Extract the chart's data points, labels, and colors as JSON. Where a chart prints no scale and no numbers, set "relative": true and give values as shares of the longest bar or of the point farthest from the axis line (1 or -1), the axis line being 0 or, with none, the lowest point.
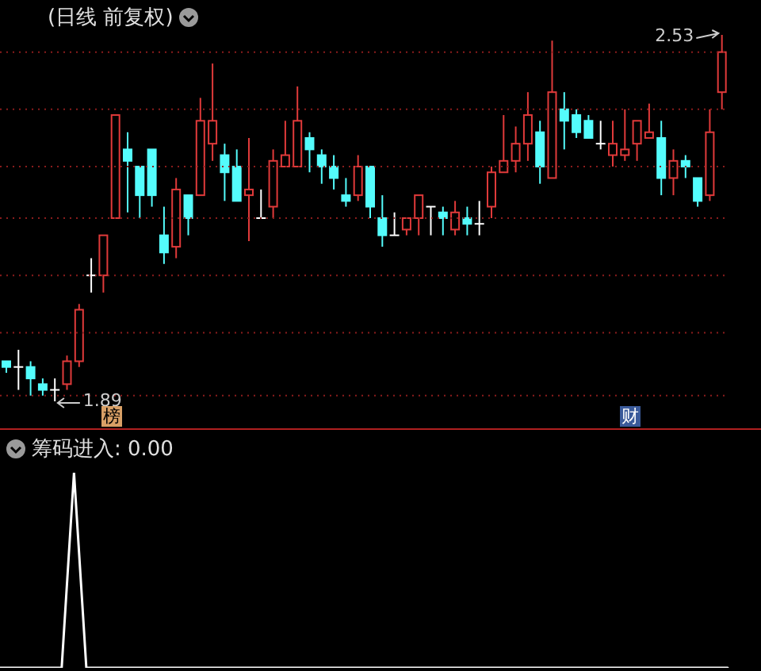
{
  "chart_data": [
    {
      "type": "candlestick",
      "title": "(日线 前复权)",
      "tick_labels": false,
      "grid": "y",
      "categories": [
        null,
        null,
        null,
        null,
        null,
        null,
        null,
        null,
        null,
        null,
        null,
        null,
        null,
        null,
        null,
        null,
        null,
        null,
        null,
        null,
        null,
        null,
        null,
        null,
        null,
        null,
        null,
        null,
        null,
        null,
        null,
        null,
        null,
        null,
        null,
        null,
        null,
        null,
        null,
        null,
        null,
        null,
        null,
        null,
        null,
        null,
        null,
        null,
        null,
        null,
        null,
        null,
        null,
        null,
        null,
        null,
        null,
        null,
        null,
        null
      ],
      "ohlc": [
        [
          1.96,
          1.96,
          1.94,
          1.95
        ],
        [
          1.95,
          1.98,
          1.91,
          1.95
        ],
        [
          1.95,
          1.96,
          1.9,
          1.93
        ],
        [
          1.92,
          1.93,
          1.9,
          1.91
        ],
        [
          1.91,
          1.93,
          1.89,
          1.91
        ],
        [
          1.92,
          1.97,
          1.91,
          1.96
        ],
        [
          1.96,
          2.06,
          1.95,
          2.05
        ],
        [
          2.11,
          2.14,
          2.08,
          2.11
        ],
        [
          2.11,
          2.18,
          2.08,
          2.18
        ],
        [
          2.21,
          2.39,
          2.21,
          2.39
        ],
        [
          2.33,
          2.36,
          2.22,
          2.31
        ],
        [
          2.3,
          2.3,
          2.21,
          2.25
        ],
        [
          2.33,
          2.33,
          2.23,
          2.25
        ],
        [
          2.18,
          2.23,
          2.13,
          2.15
        ],
        [
          2.16,
          2.28,
          2.14,
          2.26
        ],
        [
          2.25,
          2.25,
          2.18,
          2.21
        ],
        [
          2.25,
          2.42,
          2.25,
          2.38
        ],
        [
          2.34,
          2.48,
          2.31,
          2.38
        ],
        [
          2.32,
          2.34,
          2.24,
          2.29
        ],
        [
          2.3,
          2.33,
          2.24,
          2.24
        ],
        [
          2.25,
          2.35,
          2.17,
          2.26
        ],
        [
          2.21,
          2.26,
          2.21,
          2.21
        ],
        [
          2.23,
          2.33,
          2.21,
          2.31
        ],
        [
          2.3,
          2.38,
          2.3,
          2.32
        ],
        [
          2.3,
          2.44,
          2.3,
          2.38
        ],
        [
          2.35,
          2.36,
          2.29,
          2.33
        ],
        [
          2.32,
          2.33,
          2.27,
          2.3
        ],
        [
          2.3,
          2.32,
          2.26,
          2.28
        ],
        [
          2.25,
          2.28,
          2.23,
          2.24
        ],
        [
          2.25,
          2.32,
          2.24,
          2.3
        ],
        [
          2.3,
          2.3,
          2.21,
          2.23
        ],
        [
          2.21,
          2.25,
          2.16,
          2.18
        ],
        [
          2.18,
          2.22,
          2.18,
          2.18
        ],
        [
          2.19,
          2.21,
          2.18,
          2.21
        ],
        [
          2.21,
          2.25,
          2.18,
          2.25
        ],
        [
          2.23,
          2.23,
          2.18,
          2.23
        ],
        [
          2.22,
          2.23,
          2.18,
          2.21
        ],
        [
          2.19,
          2.24,
          2.18,
          2.22
        ],
        [
          2.21,
          2.23,
          2.18,
          2.2
        ],
        [
          2.2,
          2.24,
          2.18,
          2.2
        ],
        [
          2.23,
          2.3,
          2.21,
          2.29
        ],
        [
          2.29,
          2.39,
          2.29,
          2.31
        ],
        [
          2.31,
          2.37,
          2.29,
          2.34
        ],
        [
          2.34,
          2.43,
          2.31,
          2.39
        ],
        [
          2.36,
          2.38,
          2.27,
          2.3
        ],
        [
          2.28,
          2.52,
          2.28,
          2.43
        ],
        [
          2.4,
          2.43,
          2.33,
          2.38
        ],
        [
          2.39,
          2.4,
          2.35,
          2.36
        ],
        [
          2.38,
          2.39,
          2.35,
          2.35
        ],
        [
          2.34,
          2.38,
          2.33,
          2.34
        ],
        [
          2.32,
          2.38,
          2.3,
          2.34
        ],
        [
          2.32,
          2.4,
          2.31,
          2.33
        ],
        [
          2.34,
          2.38,
          2.31,
          2.38
        ],
        [
          2.35,
          2.41,
          2.35,
          2.36
        ],
        [
          2.35,
          2.38,
          2.25,
          2.28
        ],
        [
          2.28,
          2.33,
          2.25,
          2.31
        ],
        [
          2.31,
          2.32,
          2.28,
          2.3
        ],
        [
          2.28,
          2.28,
          2.23,
          2.24
        ],
        [
          2.25,
          2.4,
          2.24,
          2.36
        ],
        [
          2.43,
          2.53,
          2.4,
          2.5
        ]
      ],
      "colors": [
        "#54fcfc",
        "#ffffff",
        "#54fcfc",
        "#54fcfc",
        "#ffffff",
        "#e03a3a",
        "#e03a3a",
        "#ffffff",
        "#e03a3a",
        "#e03a3a",
        "#54fcfc",
        "#54fcfc",
        "#54fcfc",
        "#54fcfc",
        "#e03a3a",
        "#54fcfc",
        "#e03a3a",
        "#e03a3a",
        "#54fcfc",
        "#54fcfc",
        "#e03a3a",
        "#ffffff",
        "#e03a3a",
        "#e03a3a",
        "#e03a3a",
        "#54fcfc",
        "#54fcfc",
        "#54fcfc",
        "#54fcfc",
        "#e03a3a",
        "#54fcfc",
        "#54fcfc",
        "#ffffff",
        "#e03a3a",
        "#e03a3a",
        "#ffffff",
        "#54fcfc",
        "#e03a3a",
        "#54fcfc",
        "#ffffff",
        "#e03a3a",
        "#e03a3a",
        "#e03a3a",
        "#e03a3a",
        "#54fcfc",
        "#e03a3a",
        "#54fcfc",
        "#54fcfc",
        "#54fcfc",
        "#ffffff",
        "#e03a3a",
        "#e03a3a",
        "#e03a3a",
        "#e03a3a",
        "#54fcfc",
        "#e03a3a",
        "#54fcfc",
        "#54fcfc",
        "#e03a3a",
        "#e03a3a"
      ],
      "yticks": [
        {
          "value": 2.5,
          "label": null
        },
        {
          "value": 2.4,
          "label": null
        },
        {
          "value": 2.3,
          "label": null
        },
        {
          "value": 2.21,
          "label": null
        },
        {
          "value": 2.11,
          "label": null
        },
        {
          "value": 2.01,
          "label": null
        },
        {
          "value": 1.9,
          "label": null
        }
      ],
      "annotations": [
        "2.53",
        "1.89",
        "榜",
        "财"
      ]
    },
    {
      "type": "line",
      "title": "筹码进入: 0.00",
      "relative": true,
      "tick_labels": false,
      "categories": [
        null,
        null,
        null,
        null,
        null,
        null,
        null,
        null,
        null,
        null,
        null,
        null,
        null,
        null,
        null,
        null,
        null,
        null,
        null,
        null,
        null,
        null,
        null,
        null,
        null,
        null,
        null,
        null,
        null,
        null,
        null,
        null,
        null,
        null,
        null,
        null,
        null,
        null,
        null,
        null,
        null,
        null,
        null,
        null,
        null,
        null,
        null,
        null,
        null,
        null,
        null,
        null,
        null,
        null,
        null,
        null,
        null,
        null,
        null,
        null
      ],
      "series": [
        {
          "color": "#ffffff",
          "values": [
            0,
            0,
            0,
            0,
            0,
            0,
            1,
            0,
            0,
            0,
            0,
            0,
            0,
            0,
            0,
            0,
            0,
            0,
            0,
            0,
            0,
            0,
            0,
            0,
            0,
            0,
            0,
            0,
            0,
            0,
            0,
            0,
            0,
            0,
            0,
            0,
            0,
            0,
            0,
            0,
            0,
            0,
            0,
            0,
            0,
            0,
            0,
            0,
            0,
            0,
            0,
            0,
            0,
            0,
            0,
            0,
            0,
            0,
            0,
            0
          ]
        }
      ]
    }
  ]
}
